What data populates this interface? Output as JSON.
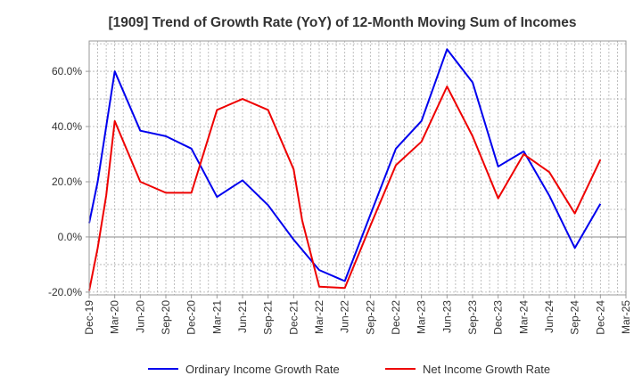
{
  "chart_data": {
    "type": "line",
    "title": "[1909]  Trend of Growth Rate (YoY) of 12-Month Moving Sum of Incomes",
    "xlabel": "",
    "ylabel": "",
    "ylim": [
      -21,
      71
    ],
    "y_ticks": [
      "60.0%",
      "40.0%",
      "20.0%",
      "0.0%",
      "-20.0%"
    ],
    "y_tick_values": [
      60,
      40,
      20,
      0,
      -20
    ],
    "categories": [
      "Dec-19",
      "Jan-20",
      "Feb-20",
      "Mar-20",
      "Apr-20",
      "May-20",
      "Jun-20",
      "Jul-20",
      "Aug-20",
      "Sep-20",
      "Oct-20",
      "Nov-20",
      "Dec-20",
      "Jan-21",
      "Feb-21",
      "Mar-21",
      "Apr-21",
      "May-21",
      "Jun-21",
      "Jul-21",
      "Aug-21",
      "Sep-21",
      "Oct-21",
      "Nov-21",
      "Dec-21",
      "Jan-22",
      "Feb-22",
      "Mar-22",
      "Apr-22",
      "May-22",
      "Jun-22",
      "Jul-22",
      "Aug-22",
      "Sep-22",
      "Oct-22",
      "Nov-22",
      "Dec-22",
      "Jan-23",
      "Feb-23",
      "Mar-23",
      "Apr-23",
      "May-23",
      "Jun-23",
      "Jul-23",
      "Aug-23",
      "Sep-23",
      "Oct-23",
      "Nov-23",
      "Dec-23",
      "Jan-24",
      "Feb-24",
      "Mar-24",
      "Apr-24",
      "May-24",
      "Jun-24",
      "Jul-24",
      "Aug-24",
      "Sep-24",
      "Oct-24",
      "Nov-24",
      "Dec-24",
      "Jan-25",
      "Feb-25",
      "Mar-25"
    ],
    "x_tick_labels": [
      "Dec-19",
      "Mar-20",
      "Jun-20",
      "Sep-20",
      "Dec-20",
      "Mar-21",
      "Jun-21",
      "Sep-21",
      "Dec-21",
      "Mar-22",
      "Jun-22",
      "Sep-22",
      "Dec-22",
      "Mar-23",
      "Jun-23",
      "Sep-23",
      "Dec-23",
      "Mar-24",
      "Jun-24",
      "Sep-24",
      "Dec-24",
      "Mar-25"
    ],
    "grid": true,
    "legend_position": "bottom",
    "series": [
      {
        "name": "Ordinary Income Growth Rate",
        "color": "#0000ee",
        "points": [
          [
            "Dec-19",
            5
          ],
          [
            "Jan-20",
            20
          ],
          [
            "Mar-20",
            60
          ],
          [
            "Jun-20",
            38.5
          ],
          [
            "Sep-20",
            36.5
          ],
          [
            "Dec-20",
            32
          ],
          [
            "Mar-21",
            14.5
          ],
          [
            "Jun-21",
            20.5
          ],
          [
            "Sep-21",
            11.5
          ],
          [
            "Dec-21",
            -1
          ],
          [
            "Mar-22",
            -12
          ],
          [
            "Jun-22",
            -16
          ],
          [
            "Sep-22",
            8
          ],
          [
            "Dec-22",
            32
          ],
          [
            "Mar-23",
            42
          ],
          [
            "Jun-23",
            68
          ],
          [
            "Sep-23",
            56
          ],
          [
            "Dec-23",
            25.5
          ],
          [
            "Mar-24",
            31
          ],
          [
            "Jun-24",
            15
          ],
          [
            "Sep-24",
            -4
          ],
          [
            "Dec-24",
            12
          ]
        ]
      },
      {
        "name": "Net Income Growth Rate",
        "color": "#ee0000",
        "points": [
          [
            "Dec-19",
            -19.5
          ],
          [
            "Jan-20",
            -4
          ],
          [
            "Feb-20",
            15
          ],
          [
            "Mar-20",
            42
          ],
          [
            "Jun-20",
            20
          ],
          [
            "Sep-20",
            16
          ],
          [
            "Dec-20",
            16
          ],
          [
            "Mar-21",
            46
          ],
          [
            "Jun-21",
            50
          ],
          [
            "Sep-21",
            46
          ],
          [
            "Dec-21",
            24.5
          ],
          [
            "Jan-22",
            6
          ],
          [
            "Mar-22",
            -18
          ],
          [
            "Jun-22",
            -18.5
          ],
          [
            "Sep-22",
            4
          ],
          [
            "Dec-22",
            26
          ],
          [
            "Mar-23",
            34.5
          ],
          [
            "Jun-23",
            54.5
          ],
          [
            "Sep-23",
            36.5
          ],
          [
            "Dec-23",
            14
          ],
          [
            "Mar-24",
            30
          ],
          [
            "Jun-24",
            23.5
          ],
          [
            "Sep-24",
            8.5
          ],
          [
            "Dec-24",
            28
          ]
        ]
      }
    ]
  }
}
